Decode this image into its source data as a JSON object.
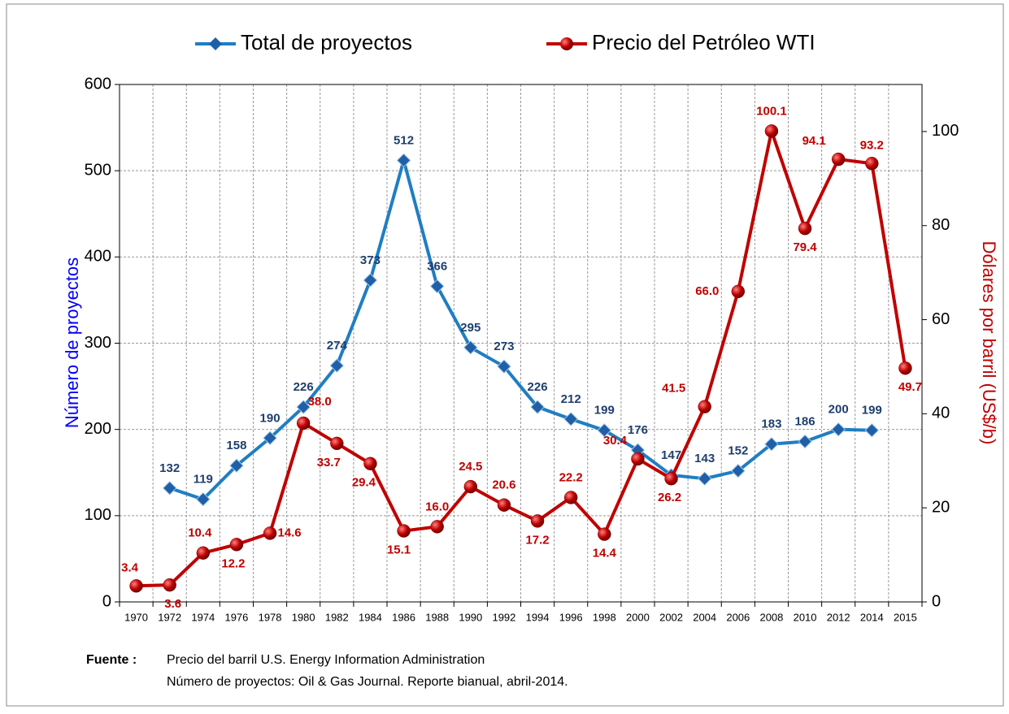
{
  "chart_data": {
    "type": "line",
    "categories": [
      "1970",
      "1972",
      "1974",
      "1976",
      "1978",
      "1980",
      "1982",
      "1984",
      "1986",
      "1988",
      "1990",
      "1992",
      "1994",
      "1996",
      "1998",
      "2000",
      "2002",
      "2004",
      "2006",
      "2008",
      "2010",
      "2012",
      "2014",
      "2015"
    ],
    "series": [
      {
        "name": "Total de proyectos",
        "color": "#1f7ec2",
        "marker_color": "#1f5fa8",
        "label_color": "#1f3f6e",
        "values": [
          null,
          132,
          119,
          158,
          190,
          226,
          274,
          373,
          512,
          366,
          295,
          273,
          226,
          212,
          199,
          176,
          147,
          143,
          152,
          183,
          186,
          200,
          199,
          null
        ]
      },
      {
        "name": "Precio del Petróleo WTI",
        "color": "#c00000",
        "marker_color": "#c00000",
        "label_color": "#c00000",
        "axis": "y2",
        "values": [
          3.4,
          3.6,
          10.4,
          12.2,
          14.6,
          38,
          33.7,
          29.4,
          15.1,
          16,
          24.5,
          20.6,
          17.2,
          22.2,
          14.4,
          30.4,
          26.2,
          41.5,
          66,
          100.1,
          79.4,
          94.1,
          93.2,
          49.7
        ],
        "value_labels": [
          "3.4",
          "3.6",
          "10.4",
          "12.2",
          "14.6",
          "38.0",
          "33.7",
          "29.4",
          "15.1",
          "16.0",
          "24.5",
          "20.6",
          "17.2",
          "22.2",
          "14.4",
          "30.4",
          "26.2",
          "41.5",
          "66.0",
          "100.1",
          "79.4",
          "94.1",
          "93.2",
          "49.7"
        ]
      }
    ],
    "y_label": "Número de proyectos",
    "y2_label": "Dólares por barril (US$/b)",
    "ylim": [
      0,
      600
    ],
    "yticks": [
      0,
      100,
      200,
      300,
      400,
      500,
      600
    ],
    "y2lim": [
      0,
      110
    ],
    "y2ticks": [
      0,
      20,
      40,
      60,
      80,
      100
    ],
    "grid": true,
    "legend": "top",
    "source_label": "Fuente :",
    "source_lines": [
      "Precio del barril U.S. Energy Information Administration",
      "Número de proyectos: Oil & Gas Journal. Reporte bianual, abril-2014."
    ]
  }
}
